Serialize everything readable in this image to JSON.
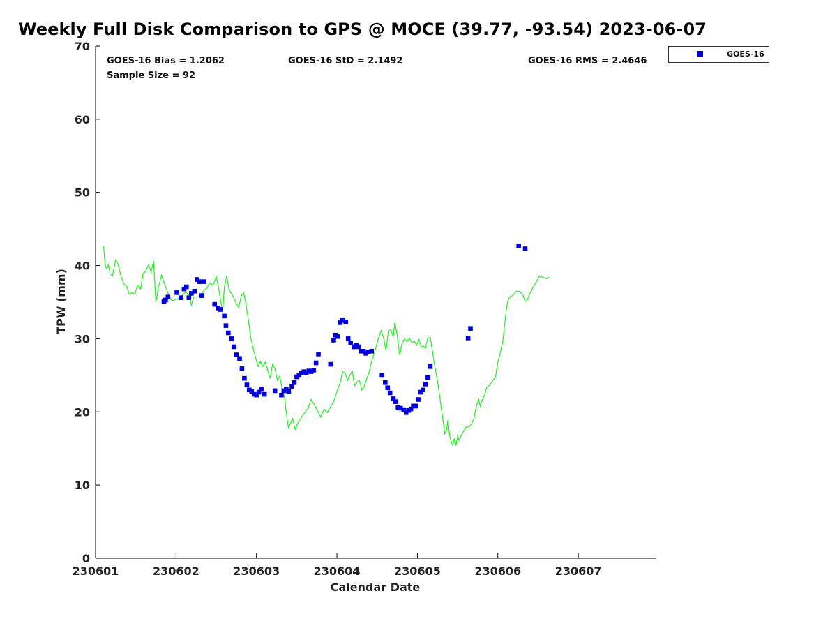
{
  "title": "Weekly Full Disk Comparison to GPS @ MOCE (39.77, -93.54) 2023-06-07",
  "stats": {
    "bias": "GOES-16 Bias = 1.2062",
    "std": "GOES-16 StD = 2.1492",
    "rms": "GOES-16 RMS = 2.4646",
    "sample": "Sample Size = 92"
  },
  "legend": {
    "label": "GOES-16",
    "marker_shape": "square"
  },
  "colors": {
    "goes": "#0000dd",
    "gps": "#22ee22",
    "axis": "#000000"
  },
  "chart_data": {
    "type": "scatter",
    "title": "Weekly Full Disk Comparison to GPS @ MOCE (39.77, -93.54) 2023-06-07",
    "xlabel": "Calendar Date",
    "ylabel": "TPW (mm)",
    "xlim": [
      1.0,
      7.97
    ],
    "ylim": [
      0,
      70
    ],
    "xticks": [
      1,
      2,
      3,
      4,
      5,
      6,
      7
    ],
    "xtick_labels": [
      "230601",
      "230602",
      "230603",
      "230604",
      "230605",
      "230606",
      "230607"
    ],
    "yticks": [
      0,
      10,
      20,
      30,
      40,
      50,
      60,
      70
    ],
    "ytick_labels": [
      "0",
      "10",
      "20",
      "30",
      "40",
      "50",
      "60",
      "70"
    ],
    "grid": false,
    "legend_position": "top-right outside",
    "series": [
      {
        "name": "GPS",
        "type": "line",
        "color": "#22ee22",
        "points": [
          [
            1.1,
            42.7
          ],
          [
            1.12,
            40.0
          ],
          [
            1.14,
            39.6
          ],
          [
            1.16,
            40.1
          ],
          [
            1.18,
            38.9
          ],
          [
            1.21,
            38.6
          ],
          [
            1.25,
            40.8
          ],
          [
            1.28,
            40.2
          ],
          [
            1.31,
            38.8
          ],
          [
            1.35,
            37.5
          ],
          [
            1.39,
            37.1
          ],
          [
            1.42,
            36.1
          ],
          [
            1.46,
            36.3
          ],
          [
            1.49,
            36.1
          ],
          [
            1.52,
            37.3
          ],
          [
            1.56,
            36.8
          ],
          [
            1.59,
            38.9
          ],
          [
            1.62,
            39.2
          ],
          [
            1.66,
            40.1
          ],
          [
            1.69,
            39.1
          ],
          [
            1.72,
            40.6
          ],
          [
            1.75,
            35.0
          ],
          [
            1.78,
            37.0
          ],
          [
            1.82,
            38.7
          ],
          [
            1.86,
            37.4
          ],
          [
            1.9,
            36.2
          ],
          [
            1.94,
            35.3
          ],
          [
            1.97,
            35.2
          ],
          [
            2.0,
            35.4
          ],
          [
            2.04,
            35.5
          ],
          [
            2.08,
            36.0
          ],
          [
            2.12,
            36.4
          ],
          [
            2.16,
            36.0
          ],
          [
            2.19,
            34.6
          ],
          [
            2.22,
            35.7
          ],
          [
            2.26,
            35.7
          ],
          [
            2.3,
            35.8
          ],
          [
            2.34,
            36.5
          ],
          [
            2.38,
            36.9
          ],
          [
            2.42,
            37.6
          ],
          [
            2.46,
            37.3
          ],
          [
            2.5,
            38.5
          ],
          [
            2.53,
            36.9
          ],
          [
            2.56,
            34.9
          ],
          [
            2.58,
            33.8
          ],
          [
            2.6,
            37.0
          ],
          [
            2.63,
            38.6
          ],
          [
            2.66,
            36.6
          ],
          [
            2.7,
            36.0
          ],
          [
            2.74,
            35.0
          ],
          [
            2.78,
            34.3
          ],
          [
            2.81,
            35.8
          ],
          [
            2.84,
            36.3
          ],
          [
            2.87,
            34.7
          ],
          [
            2.9,
            32.5
          ],
          [
            2.93,
            30.1
          ],
          [
            2.96,
            28.6
          ],
          [
            2.99,
            27.4
          ],
          [
            3.02,
            26.2
          ],
          [
            3.05,
            26.9
          ],
          [
            3.08,
            26.2
          ],
          [
            3.11,
            26.8
          ],
          [
            3.14,
            25.6
          ],
          [
            3.17,
            24.6
          ],
          [
            3.2,
            26.5
          ],
          [
            3.23,
            25.9
          ],
          [
            3.26,
            24.3
          ],
          [
            3.29,
            24.9
          ],
          [
            3.32,
            23.0
          ],
          [
            3.35,
            21.9
          ],
          [
            3.38,
            19.1
          ],
          [
            3.4,
            17.7
          ],
          [
            3.42,
            18.4
          ],
          [
            3.45,
            19.1
          ],
          [
            3.48,
            17.6
          ],
          [
            3.52,
            18.6
          ],
          [
            3.56,
            19.3
          ],
          [
            3.6,
            19.9
          ],
          [
            3.64,
            20.5
          ],
          [
            3.68,
            21.7
          ],
          [
            3.72,
            21.0
          ],
          [
            3.76,
            20.1
          ],
          [
            3.8,
            19.3
          ],
          [
            3.84,
            20.4
          ],
          [
            3.88,
            19.9
          ],
          [
            3.92,
            20.7
          ],
          [
            3.96,
            21.4
          ],
          [
            4.0,
            22.8
          ],
          [
            4.04,
            24.0
          ],
          [
            4.07,
            25.5
          ],
          [
            4.1,
            25.4
          ],
          [
            4.13,
            24.3
          ],
          [
            4.16,
            25.0
          ],
          [
            4.19,
            25.6
          ],
          [
            4.22,
            23.6
          ],
          [
            4.25,
            24.1
          ],
          [
            4.28,
            24.3
          ],
          [
            4.31,
            23.0
          ],
          [
            4.34,
            23.5
          ],
          [
            4.37,
            24.5
          ],
          [
            4.4,
            25.4
          ],
          [
            4.43,
            26.9
          ],
          [
            4.46,
            27.9
          ],
          [
            4.49,
            29.0
          ],
          [
            4.52,
            30.2
          ],
          [
            4.55,
            31.1
          ],
          [
            4.58,
            30.1
          ],
          [
            4.61,
            28.4
          ],
          [
            4.64,
            31.1
          ],
          [
            4.67,
            31.2
          ],
          [
            4.7,
            30.3
          ],
          [
            4.72,
            32.2
          ],
          [
            4.75,
            30.4
          ],
          [
            4.78,
            27.8
          ],
          [
            4.81,
            29.4
          ],
          [
            4.84,
            30.0
          ],
          [
            4.87,
            29.6
          ],
          [
            4.9,
            30.1
          ],
          [
            4.93,
            29.4
          ],
          [
            4.96,
            29.7
          ],
          [
            4.99,
            29.1
          ],
          [
            5.02,
            29.9
          ],
          [
            5.05,
            28.8
          ],
          [
            5.08,
            29.0
          ],
          [
            5.1,
            28.7
          ],
          [
            5.13,
            30.1
          ],
          [
            5.16,
            30.2
          ],
          [
            5.19,
            28.1
          ],
          [
            5.22,
            26.0
          ],
          [
            5.25,
            24.3
          ],
          [
            5.28,
            22.0
          ],
          [
            5.3,
            20.2
          ],
          [
            5.32,
            18.8
          ],
          [
            5.34,
            17.0
          ],
          [
            5.36,
            17.4
          ],
          [
            5.38,
            18.9
          ],
          [
            5.4,
            16.9
          ],
          [
            5.42,
            15.9
          ],
          [
            5.44,
            15.4
          ],
          [
            5.46,
            16.4
          ],
          [
            5.48,
            15.4
          ],
          [
            5.5,
            16.7
          ],
          [
            5.52,
            16.1
          ],
          [
            5.55,
            16.9
          ],
          [
            5.58,
            17.5
          ],
          [
            5.61,
            18.0
          ],
          [
            5.64,
            17.9
          ],
          [
            5.67,
            18.3
          ],
          [
            5.7,
            19.0
          ],
          [
            5.73,
            20.6
          ],
          [
            5.76,
            21.8
          ],
          [
            5.78,
            20.8
          ],
          [
            5.8,
            21.5
          ],
          [
            5.83,
            22.1
          ],
          [
            5.86,
            23.3
          ],
          [
            5.9,
            23.7
          ],
          [
            5.94,
            24.3
          ],
          [
            5.97,
            24.8
          ],
          [
            6.0,
            26.8
          ],
          [
            6.03,
            28.0
          ],
          [
            6.06,
            29.6
          ],
          [
            6.08,
            31.4
          ],
          [
            6.1,
            33.5
          ],
          [
            6.12,
            35.0
          ],
          [
            6.14,
            35.6
          ],
          [
            6.17,
            35.8
          ],
          [
            6.2,
            36.1
          ],
          [
            6.23,
            36.5
          ],
          [
            6.27,
            36.5
          ],
          [
            6.31,
            36.0
          ],
          [
            6.34,
            35.1
          ],
          [
            6.37,
            35.4
          ],
          [
            6.4,
            36.2
          ],
          [
            6.44,
            37.1
          ],
          [
            6.48,
            37.8
          ],
          [
            6.52,
            38.6
          ],
          [
            6.56,
            38.4
          ],
          [
            6.6,
            38.2
          ],
          [
            6.64,
            38.4
          ]
        ]
      },
      {
        "name": "GOES-16",
        "type": "scatter",
        "color": "#0000dd",
        "points": [
          [
            1.85,
            35.1
          ],
          [
            1.87,
            35.3
          ],
          [
            1.9,
            35.7
          ],
          [
            2.01,
            36.3
          ],
          [
            2.06,
            35.6
          ],
          [
            2.1,
            36.8
          ],
          [
            2.13,
            37.1
          ],
          [
            2.16,
            35.6
          ],
          [
            2.19,
            36.2
          ],
          [
            2.23,
            36.5
          ],
          [
            2.26,
            38.1
          ],
          [
            2.29,
            37.8
          ],
          [
            2.32,
            35.9
          ],
          [
            2.35,
            37.8
          ],
          [
            2.48,
            34.7
          ],
          [
            2.52,
            34.2
          ],
          [
            2.55,
            34.0
          ],
          [
            2.6,
            33.1
          ],
          [
            2.62,
            31.8
          ],
          [
            2.65,
            30.8
          ],
          [
            2.69,
            30.0
          ],
          [
            2.72,
            28.9
          ],
          [
            2.75,
            27.8
          ],
          [
            2.79,
            27.3
          ],
          [
            2.82,
            25.9
          ],
          [
            2.85,
            24.6
          ],
          [
            2.88,
            23.7
          ],
          [
            2.91,
            23.0
          ],
          [
            2.94,
            22.8
          ],
          [
            2.97,
            22.4
          ],
          [
            3.0,
            22.3
          ],
          [
            3.03,
            22.7
          ],
          [
            3.06,
            23.1
          ],
          [
            3.1,
            22.4
          ],
          [
            3.23,
            22.9
          ],
          [
            3.31,
            22.3
          ],
          [
            3.34,
            22.9
          ],
          [
            3.37,
            23.1
          ],
          [
            3.4,
            22.8
          ],
          [
            3.44,
            23.5
          ],
          [
            3.47,
            24.0
          ],
          [
            3.5,
            24.8
          ],
          [
            3.53,
            25.0
          ],
          [
            3.56,
            25.3
          ],
          [
            3.59,
            25.5
          ],
          [
            3.62,
            25.3
          ],
          [
            3.65,
            25.6
          ],
          [
            3.68,
            25.5
          ],
          [
            3.71,
            25.7
          ],
          [
            3.74,
            26.7
          ],
          [
            3.77,
            27.9
          ],
          [
            3.92,
            26.5
          ],
          [
            3.96,
            29.8
          ],
          [
            3.98,
            30.5
          ],
          [
            4.01,
            30.3
          ],
          [
            4.04,
            32.2
          ],
          [
            4.07,
            32.5
          ],
          [
            4.11,
            32.3
          ],
          [
            4.14,
            30.0
          ],
          [
            4.17,
            29.4
          ],
          [
            4.21,
            28.9
          ],
          [
            4.24,
            29.1
          ],
          [
            4.27,
            28.9
          ],
          [
            4.3,
            28.3
          ],
          [
            4.33,
            28.3
          ],
          [
            4.36,
            28.0
          ],
          [
            4.39,
            28.2
          ],
          [
            4.43,
            28.3
          ],
          [
            4.56,
            25.0
          ],
          [
            4.6,
            24.0
          ],
          [
            4.63,
            23.3
          ],
          [
            4.66,
            22.6
          ],
          [
            4.7,
            21.8
          ],
          [
            4.73,
            21.4
          ],
          [
            4.76,
            20.6
          ],
          [
            4.79,
            20.5
          ],
          [
            4.83,
            20.3
          ],
          [
            4.86,
            19.9
          ],
          [
            4.89,
            20.2
          ],
          [
            4.92,
            20.4
          ],
          [
            4.95,
            20.8
          ],
          [
            4.98,
            20.8
          ],
          [
            5.01,
            21.7
          ],
          [
            5.04,
            22.7
          ],
          [
            5.07,
            23.0
          ],
          [
            5.1,
            23.8
          ],
          [
            5.13,
            24.7
          ],
          [
            5.16,
            26.2
          ],
          [
            5.63,
            30.1
          ],
          [
            5.66,
            31.4
          ],
          [
            6.26,
            42.7
          ],
          [
            6.34,
            42.3
          ]
        ]
      }
    ]
  }
}
